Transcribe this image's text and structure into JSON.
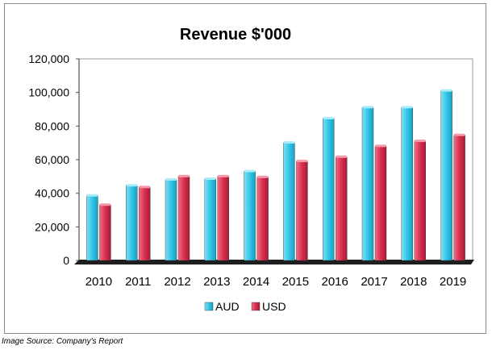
{
  "chart_data": {
    "type": "bar",
    "title": "Revenue $'000",
    "categories": [
      "2010",
      "2011",
      "2012",
      "2013",
      "2014",
      "2015",
      "2016",
      "2017",
      "2018",
      "2019"
    ],
    "series": [
      {
        "name": "AUD",
        "color": "#33c6e8",
        "values": [
          38500,
          44500,
          48000,
          48500,
          53000,
          70000,
          84500,
          91000,
          91000,
          101000
        ]
      },
      {
        "name": "USD",
        "color": "#d9304f",
        "values": [
          33000,
          43500,
          50000,
          50000,
          49500,
          59000,
          61500,
          68000,
          71000,
          74500
        ]
      }
    ],
    "ylim": [
      0,
      120000
    ],
    "yticks": [
      "0",
      "20,000",
      "40,000",
      "60,000",
      "80,000",
      "100,000",
      "120,000"
    ],
    "grid": false,
    "legend_position": "bottom"
  },
  "source_note": "Image Source: Company's Report"
}
